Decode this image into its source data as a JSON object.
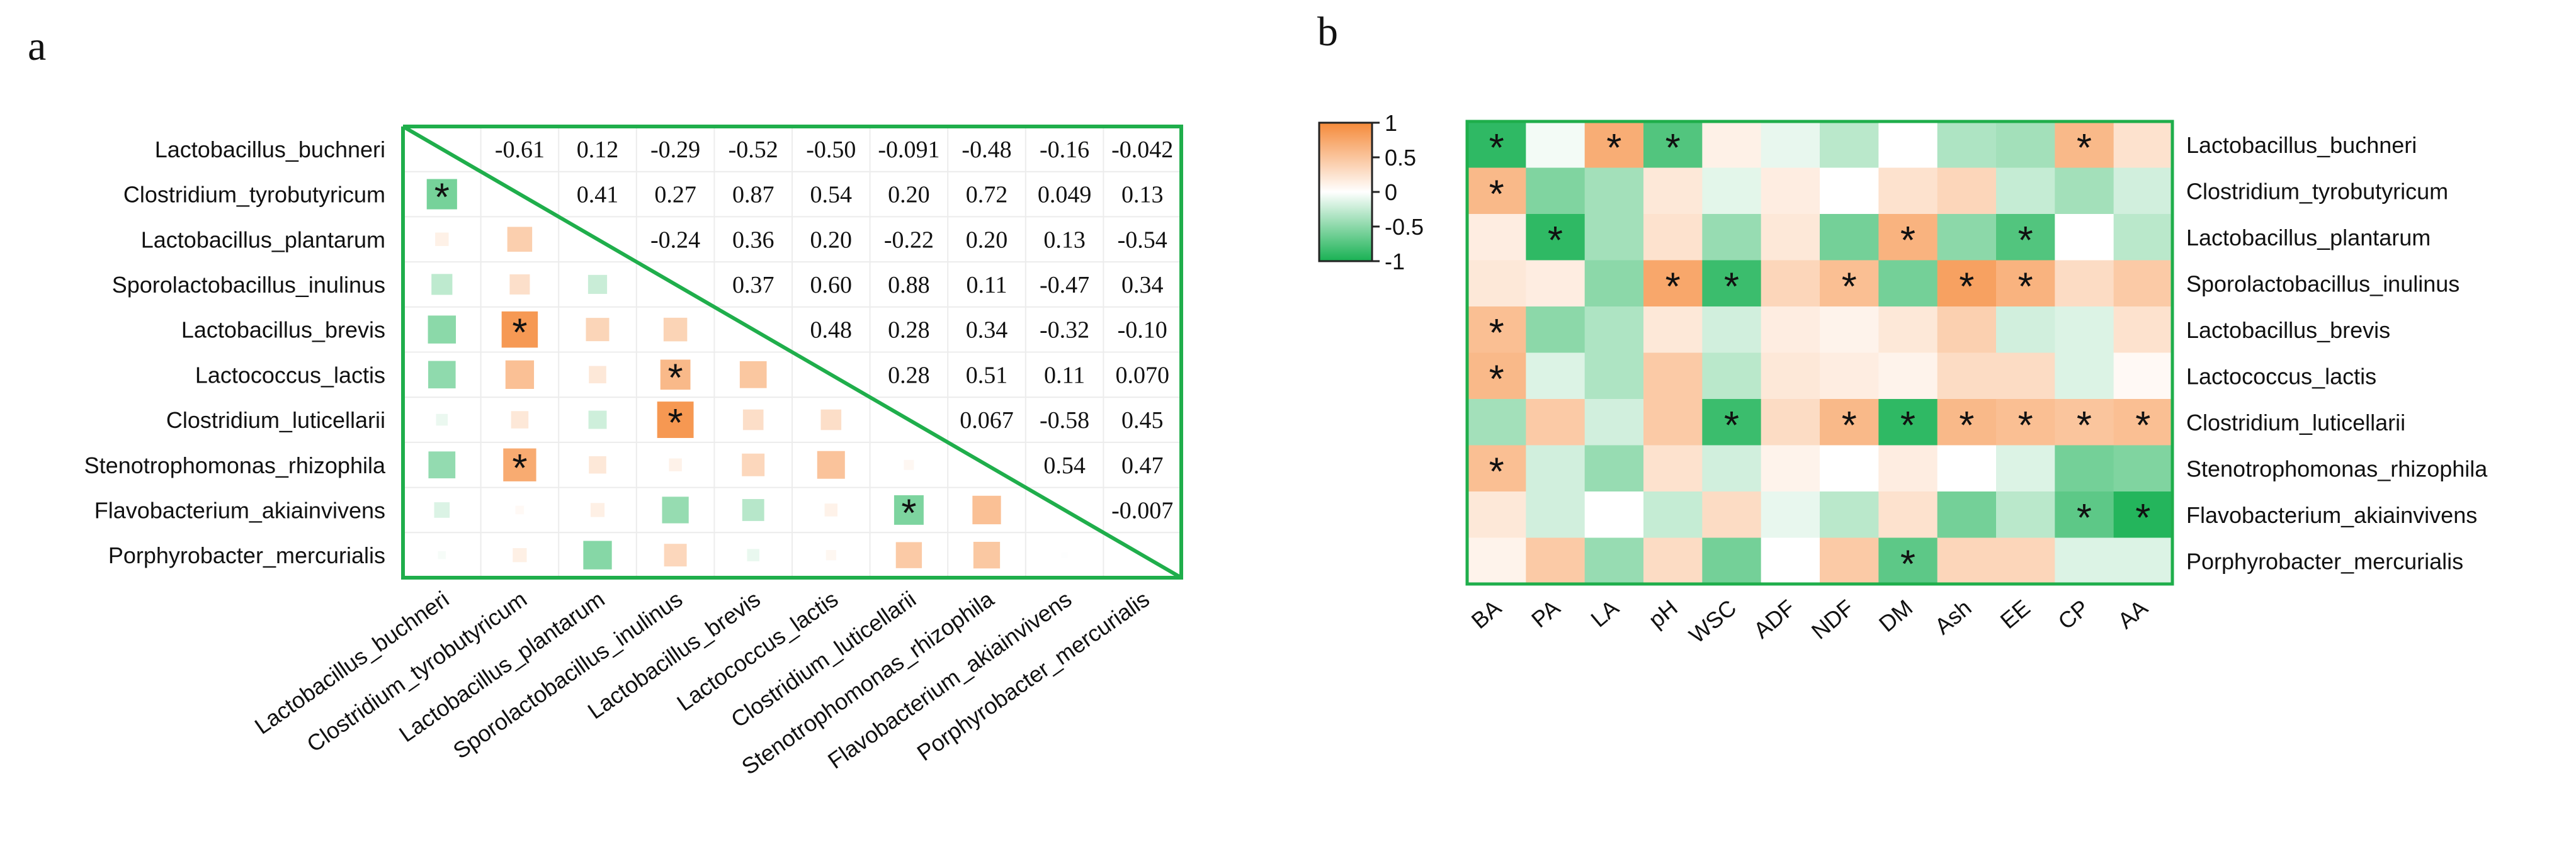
{
  "panel_labels": [
    "a",
    "b"
  ],
  "chart_data": [
    {
      "type": "heatmap",
      "panel": "a",
      "title": "",
      "subtitle": "Correlation matrix among bacterial taxa (upper triangle: coefficients; lower triangle: colored squares sized by |r|)",
      "labels": [
        "Lactobacillus_buchneri",
        "Clostridium_tyrobutyricum",
        "Lactobacillus_plantarum",
        "Sporolactobacillus_inulinus",
        "Lactobacillus_brevis",
        "Lactococcus_lactis",
        "Clostridium_luticellarii",
        "Stenotrophomonas_rhizophila",
        "Flavobacterium_akiainvivens",
        "Porphyrobacter_mercurialis"
      ],
      "upper_text": [
        [
          "",
          "-0.61",
          "0.12",
          "-0.29",
          "-0.52",
          "-0.50",
          "-0.091",
          "-0.48",
          "-0.16",
          "-0.042"
        ],
        [
          "",
          "",
          "0.41",
          "0.27",
          "0.87",
          "0.54",
          "0.20",
          "0.72",
          "0.049",
          "0.13"
        ],
        [
          "",
          "",
          "",
          "-0.24",
          "0.36",
          "0.20",
          "-0.22",
          "0.20",
          "0.13",
          "-0.54"
        ],
        [
          "",
          "",
          "",
          "",
          "0.37",
          "0.60",
          "0.88",
          "0.11",
          "-0.47",
          "0.34"
        ],
        [
          "",
          "",
          "",
          "",
          "",
          "0.48",
          "0.28",
          "0.34",
          "-0.32",
          "-0.10"
        ],
        [
          "",
          "",
          "",
          "",
          "",
          "",
          "0.28",
          "0.51",
          "0.11",
          "0.070"
        ],
        [
          "",
          "",
          "",
          "",
          "",
          "",
          "",
          "0.067",
          "-0.58",
          "0.45"
        ],
        [
          "",
          "",
          "",
          "",
          "",
          "",
          "",
          "",
          "0.54",
          "0.47"
        ],
        [
          "",
          "",
          "",
          "",
          "",
          "",
          "",
          "",
          "",
          "-0.007"
        ],
        [
          "",
          "",
          "",
          "",
          "",
          "",
          "",
          "",
          "",
          ""
        ]
      ],
      "matrix": [
        [
          1,
          -0.61,
          0.12,
          -0.29,
          -0.52,
          -0.5,
          -0.091,
          -0.48,
          -0.16,
          -0.042
        ],
        [
          -0.61,
          1,
          0.41,
          0.27,
          0.87,
          0.54,
          0.2,
          0.72,
          0.049,
          0.13
        ],
        [
          0.12,
          0.41,
          1,
          -0.24,
          0.36,
          0.2,
          -0.22,
          0.2,
          0.13,
          -0.54
        ],
        [
          -0.29,
          0.27,
          -0.24,
          1,
          0.37,
          0.6,
          0.88,
          0.11,
          -0.47,
          0.34
        ],
        [
          -0.52,
          0.87,
          0.36,
          0.37,
          1,
          0.48,
          0.28,
          0.34,
          -0.32,
          -0.1
        ],
        [
          -0.5,
          0.54,
          0.2,
          0.6,
          0.48,
          1,
          0.28,
          0.51,
          0.11,
          0.07
        ],
        [
          -0.091,
          0.2,
          -0.22,
          0.88,
          0.28,
          0.28,
          1,
          0.067,
          -0.58,
          0.45
        ],
        [
          -0.48,
          0.72,
          0.2,
          0.11,
          0.34,
          0.51,
          0.067,
          1,
          0.54,
          0.47
        ],
        [
          -0.16,
          0.049,
          0.13,
          -0.47,
          -0.32,
          0.11,
          -0.58,
          0.54,
          1,
          -0.007
        ],
        [
          -0.042,
          0.13,
          -0.54,
          0.34,
          -0.1,
          0.07,
          0.45,
          0.47,
          -0.007,
          1
        ]
      ],
      "significant": [
        [
          1,
          0
        ],
        [
          4,
          1
        ],
        [
          5,
          3
        ],
        [
          6,
          3
        ],
        [
          7,
          1
        ],
        [
          8,
          6
        ]
      ],
      "star_symbol": "*",
      "border_color": "#1fae4b"
    },
    {
      "type": "heatmap",
      "panel": "b",
      "title": "",
      "subtitle": "Correlation between bacterial taxa and silage quality variables",
      "columns": [
        "BA",
        "PA",
        "LA",
        "pH",
        "WSC",
        "ADF",
        "NDF",
        "DM",
        "Ash",
        "EE",
        "CP",
        "AA"
      ],
      "rows": [
        "Lactobacillus_buchneri",
        "Clostridium_tyrobutyricum",
        "Lactobacillus_plantarum",
        "Sporolactobacillus_inulinus",
        "Lactobacillus_brevis",
        "Lactococcus_lactis",
        "Clostridium_luticellarii",
        "Stenotrophomonas_rhizophila",
        "Flavobacterium_akiainvivens",
        "Porphyrobacter_mercurialis"
      ],
      "values": [
        [
          -0.9,
          -0.05,
          0.7,
          -0.75,
          0.12,
          -0.1,
          -0.3,
          0.0,
          -0.35,
          -0.4,
          0.6,
          0.25
        ],
        [
          0.6,
          -0.55,
          -0.4,
          0.2,
          -0.12,
          0.15,
          0.0,
          0.25,
          0.35,
          -0.25,
          -0.4,
          -0.2
        ],
        [
          0.15,
          -0.9,
          -0.4,
          0.25,
          -0.45,
          0.2,
          -0.6,
          0.65,
          -0.5,
          -0.75,
          0.0,
          -0.3
        ],
        [
          0.2,
          0.15,
          -0.5,
          0.75,
          -0.85,
          0.35,
          0.55,
          -0.6,
          0.8,
          0.65,
          0.3,
          0.45
        ],
        [
          0.55,
          -0.5,
          -0.35,
          0.2,
          -0.2,
          0.15,
          0.1,
          0.2,
          0.4,
          -0.2,
          -0.15,
          0.25
        ],
        [
          0.6,
          -0.15,
          -0.35,
          0.45,
          -0.3,
          0.2,
          0.15,
          0.1,
          0.3,
          0.3,
          -0.15,
          0.05
        ],
        [
          -0.4,
          0.45,
          -0.2,
          0.45,
          -0.85,
          0.3,
          0.6,
          -0.9,
          0.6,
          0.55,
          0.5,
          0.55
        ],
        [
          0.55,
          -0.2,
          -0.45,
          0.25,
          -0.2,
          0.1,
          0.0,
          0.15,
          0.0,
          -0.15,
          -0.6,
          -0.55
        ],
        [
          0.2,
          -0.2,
          0.0,
          -0.25,
          0.3,
          -0.1,
          -0.3,
          0.25,
          -0.6,
          -0.3,
          -0.7,
          -0.95
        ],
        [
          0.1,
          0.45,
          -0.45,
          0.3,
          -0.6,
          0.0,
          0.45,
          -0.7,
          0.35,
          0.35,
          -0.15,
          -0.15
        ]
      ],
      "significant": [
        [
          0,
          0
        ],
        [
          0,
          2
        ],
        [
          0,
          3
        ],
        [
          0,
          10
        ],
        [
          1,
          0
        ],
        [
          2,
          1
        ],
        [
          2,
          7
        ],
        [
          2,
          9
        ],
        [
          3,
          3
        ],
        [
          3,
          4
        ],
        [
          3,
          6
        ],
        [
          3,
          8
        ],
        [
          3,
          9
        ],
        [
          4,
          0
        ],
        [
          5,
          0
        ],
        [
          6,
          4
        ],
        [
          6,
          6
        ],
        [
          6,
          7
        ],
        [
          6,
          8
        ],
        [
          6,
          9
        ],
        [
          6,
          10
        ],
        [
          6,
          11
        ],
        [
          7,
          0
        ],
        [
          8,
          10
        ],
        [
          8,
          11
        ],
        [
          9,
          7
        ]
      ],
      "star_symbol": "*",
      "colorbar": {
        "ticks": [
          "1",
          "0.5",
          "0",
          "-0.5",
          "-1"
        ],
        "range": [
          -1,
          1
        ]
      },
      "colors": {
        "positive": "#f58a3a",
        "neutral": "#ffffff",
        "negative": "#18b153",
        "border": "#1fae4b"
      }
    }
  ]
}
